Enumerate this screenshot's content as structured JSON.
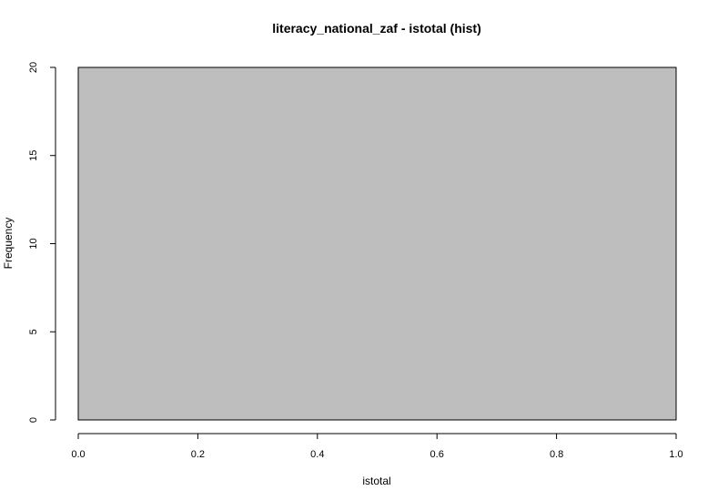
{
  "chart_data": {
    "type": "bar",
    "title": "literacy_national_zaf - istotal (hist)",
    "xlabel": "istotal",
    "ylabel": "Frequency",
    "xlim": [
      0,
      1
    ],
    "ylim": [
      0,
      20
    ],
    "x_ticks": [
      "0.0",
      "0.2",
      "0.4",
      "0.6",
      "0.8",
      "1.0"
    ],
    "y_ticks": [
      "0",
      "5",
      "10",
      "15",
      "20"
    ],
    "bins": [
      {
        "start": 0.0,
        "end": 1.0,
        "count": 20
      }
    ],
    "bar_color": "#bebebe",
    "grid": false,
    "legend": "none"
  }
}
